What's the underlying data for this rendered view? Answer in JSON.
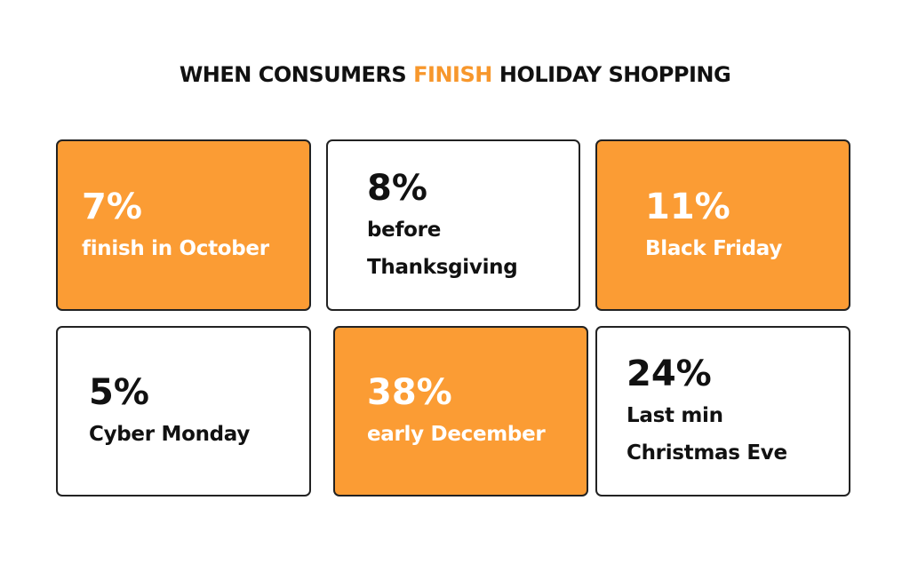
{
  "header": {
    "title": [
      "WHEN CONSUMERS",
      "FINISH",
      "HOLIDAY SHOPPING"
    ]
  },
  "cards": [
    {
      "stat": "7%",
      "lines": [
        "finish in October"
      ],
      "highlight": true
    },
    {
      "stat": "8%",
      "lines": [
        "before",
        "Thanksgiving"
      ],
      "highlight": false
    },
    {
      "stat": "11%",
      "lines": [
        "Black Friday"
      ],
      "highlight": true
    },
    {
      "stat": "5%",
      "lines": [
        "Cyber Monday"
      ],
      "highlight": false
    },
    {
      "stat": "38%",
      "lines": [
        "early December"
      ],
      "highlight": true
    },
    {
      "stat": "24%",
      "lines": [
        "Last min",
        "Christmas Eve"
      ],
      "highlight": false
    }
  ]
}
